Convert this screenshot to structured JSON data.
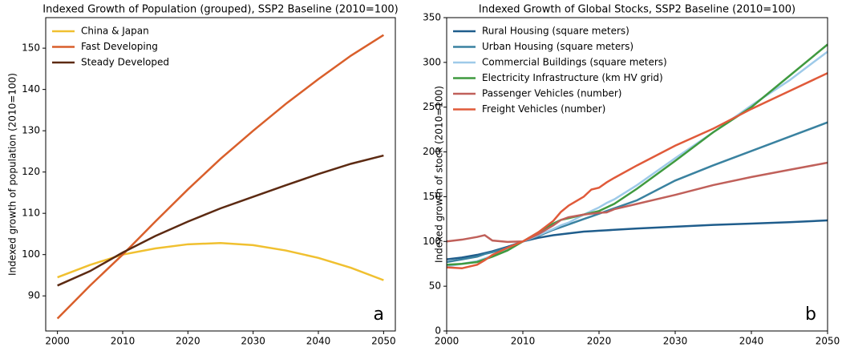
{
  "chart_data": [
    {
      "type": "line",
      "title": "Indexed Growth of Population (grouped), SSP2 Baseline (2010=100)",
      "ylabel": "Indexed growth of population (2010=100)",
      "annotation": "a",
      "x": [
        2000,
        2005,
        2010,
        2015,
        2020,
        2025,
        2030,
        2035,
        2040,
        2045,
        2050
      ],
      "series": [
        {
          "name": "China & Japan",
          "color": "#f0c030",
          "values": [
            94.5,
            97.5,
            100,
            101.5,
            102.5,
            102.8,
            102.3,
            101,
            99.2,
            96.8,
            93.8
          ]
        },
        {
          "name": "Fast Developing",
          "color": "#d95f2b",
          "values": [
            84.5,
            92.5,
            100,
            108,
            115.8,
            123.2,
            130,
            136.5,
            142.5,
            148.2,
            153.2
          ]
        },
        {
          "name": "Steady Developed",
          "color": "#5c2a12",
          "values": [
            92.5,
            96,
            100.5,
            104.5,
            108,
            111.2,
            114,
            116.8,
            119.5,
            122,
            124
          ]
        }
      ],
      "xlim": [
        1998.2,
        2051.8
      ],
      "ylim": [
        81.5,
        157.4
      ],
      "xticks": [
        2000,
        2010,
        2020,
        2030,
        2040,
        2050
      ],
      "yticks": [
        90,
        100,
        110,
        120,
        130,
        140,
        150
      ],
      "legend": "upper left",
      "grid": false
    },
    {
      "type": "line",
      "title": "Indexed Growth of Global Stocks, SSP2 Baseline (2010=100)",
      "ylabel": "Indexed growth of stock (2010=100)",
      "annotation": "b",
      "x": [
        2000,
        2002,
        2004,
        2005,
        2006,
        2008,
        2010,
        2012,
        2014,
        2015,
        2016,
        2018,
        2019,
        2020,
        2021,
        2022,
        2025,
        2030,
        2035,
        2040,
        2045,
        2050
      ],
      "series": [
        {
          "name": "Rural Housing (square meters)",
          "color": "#1f5d8c",
          "values": [
            80,
            82,
            85,
            87,
            89,
            94,
            100,
            104,
            107,
            108,
            109,
            111,
            111.5,
            112,
            112.5,
            113,
            114.5,
            116.5,
            118.5,
            120,
            121.5,
            123.5
          ]
        },
        {
          "name": "Urban Housing (square meters)",
          "color": "#3a82a0",
          "values": [
            77,
            80,
            83,
            86,
            88,
            93,
            100,
            106,
            113,
            116,
            119,
            125,
            128,
            131,
            134,
            137,
            146,
            168,
            185,
            201,
            217,
            233
          ]
        },
        {
          "name": "Commercial Buildings (square meters)",
          "color": "#9ecae9",
          "values": [
            72,
            75,
            78,
            81,
            84,
            91,
            100,
            107,
            114,
            118,
            121,
            130,
            134,
            138,
            143,
            147,
            163,
            193,
            222,
            252,
            280,
            312
          ]
        },
        {
          "name": "Electricity Infrastructure (km HV grid)",
          "color": "#3f9a3f",
          "values": [
            74,
            75,
            77,
            80,
            83,
            90,
            100,
            110,
            120,
            124,
            126,
            130,
            132,
            134,
            138,
            142,
            159,
            190,
            222,
            250,
            285,
            320
          ]
        },
        {
          "name": "Passenger Vehicles (number)",
          "color": "#c0605a",
          "values": [
            100,
            102,
            105,
            107,
            101,
            99.5,
            100,
            108,
            118,
            124,
            127,
            130,
            131,
            132,
            132.5,
            136,
            142,
            152,
            163,
            172,
            180,
            188
          ]
        },
        {
          "name": "Freight Vehicles (number)",
          "color": "#e05a3a",
          "values": [
            71,
            70,
            74,
            79,
            85,
            93,
            100,
            110,
            123,
            133,
            140,
            150,
            158,
            160,
            166,
            171,
            185,
            207,
            226,
            248,
            268,
            288
          ]
        }
      ],
      "xlim": [
        2000,
        2050
      ],
      "ylim": [
        0,
        350
      ],
      "xticks": [
        2000,
        2010,
        2020,
        2030,
        2040,
        2050
      ],
      "yticks": [
        0,
        50,
        100,
        150,
        200,
        250,
        300,
        350
      ],
      "legend": "upper left",
      "grid": false
    }
  ]
}
